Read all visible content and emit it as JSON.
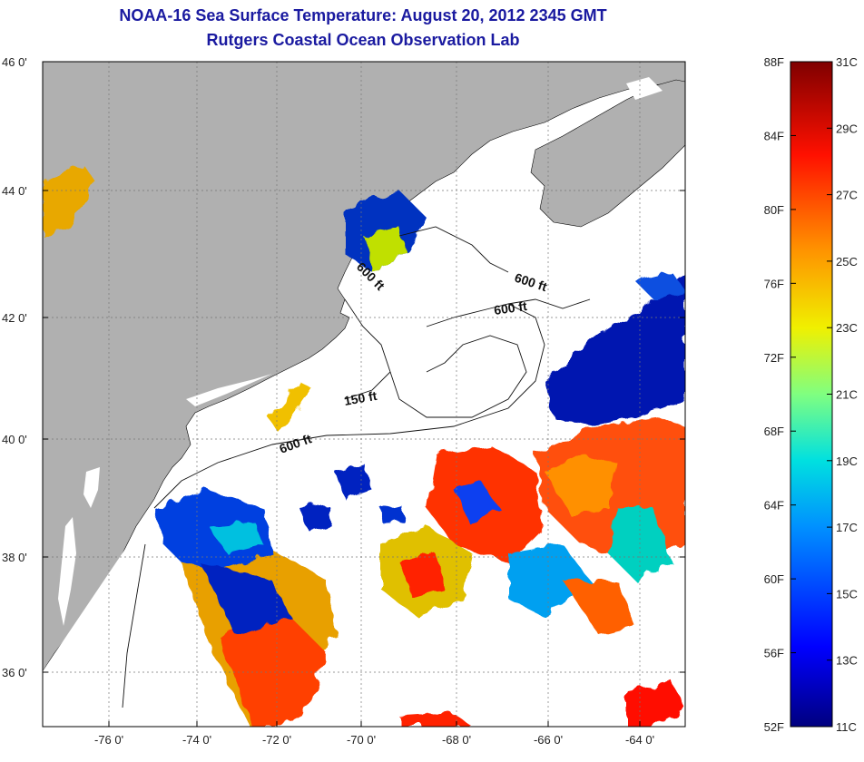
{
  "title_line1": "NOAA-16 Sea Surface Temperature:  August 20, 2012 2345 GMT",
  "title_line2": "Rutgers Coastal Ocean Observation Lab",
  "lat_labels": [
    "46 0'",
    "44 0'",
    "42 0'",
    "40 0'",
    "38 0'",
    "36 0'"
  ],
  "lon_labels": [
    "-76 0'",
    "-74 0'",
    "-72 0'",
    "-70 0'",
    "-68 0'",
    "-66 0'",
    "-64 0'"
  ],
  "contour_labels": [
    "600 ft",
    "600 ft",
    "600 ft",
    "150 ft",
    "600 ft"
  ],
  "colorbar": {
    "fahrenheit": [
      "88F",
      "84F",
      "80F",
      "76F",
      "72F",
      "68F",
      "64F",
      "60F",
      "56F",
      "52F"
    ],
    "celsius": [
      "31C",
      "29C",
      "27C",
      "25C",
      "23C",
      "21C",
      "19C",
      "17C",
      "15C",
      "13C",
      "11C"
    ]
  },
  "colors": {
    "land": "#b0b0b0",
    "ocean_nodata": "#ffffff",
    "title": "#1a1aa0"
  }
}
